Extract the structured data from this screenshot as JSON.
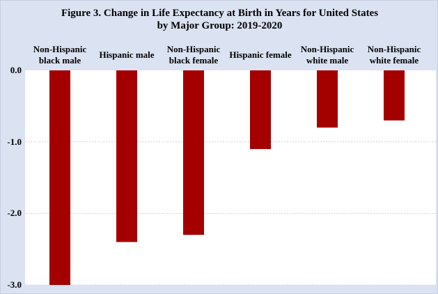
{
  "chart_data": {
    "type": "bar",
    "title_lines": [
      "Figure 3. Change in Life Expectancy at Birth in Years for United States",
      "by Major Group: 2019-2020"
    ],
    "categories": [
      "Non-Hispanic black male",
      "Hispanic male",
      "Non-Hispanic black female",
      "Hispanic female",
      "Non-Hispanic white male",
      "Non-Hispanic white female"
    ],
    "category_label_lines": [
      [
        "Non-Hispanic",
        "black male"
      ],
      [
        "Hispanic male"
      ],
      [
        "Non-Hispanic",
        "black female"
      ],
      [
        "Hispanic female"
      ],
      [
        "Non-Hispanic",
        "white male"
      ],
      [
        "Non-Hispanic",
        "white female"
      ]
    ],
    "values": [
      -3.0,
      -2.4,
      -2.3,
      -1.1,
      -0.8,
      -0.7
    ],
    "ylim": [
      -3.0,
      0.0
    ],
    "yticks": [
      0.0,
      -1.0,
      -2.0,
      -3.0
    ],
    "ytick_labels": [
      "0.0",
      "-1.0",
      "-2.0",
      "-3.0"
    ],
    "xlabel": "",
    "ylabel": "",
    "grid": true,
    "bar_color": "#a50000",
    "grid_color": "#c8c8c8",
    "plot_background": "#ffffff",
    "figure_background": "#dbe2f2"
  }
}
